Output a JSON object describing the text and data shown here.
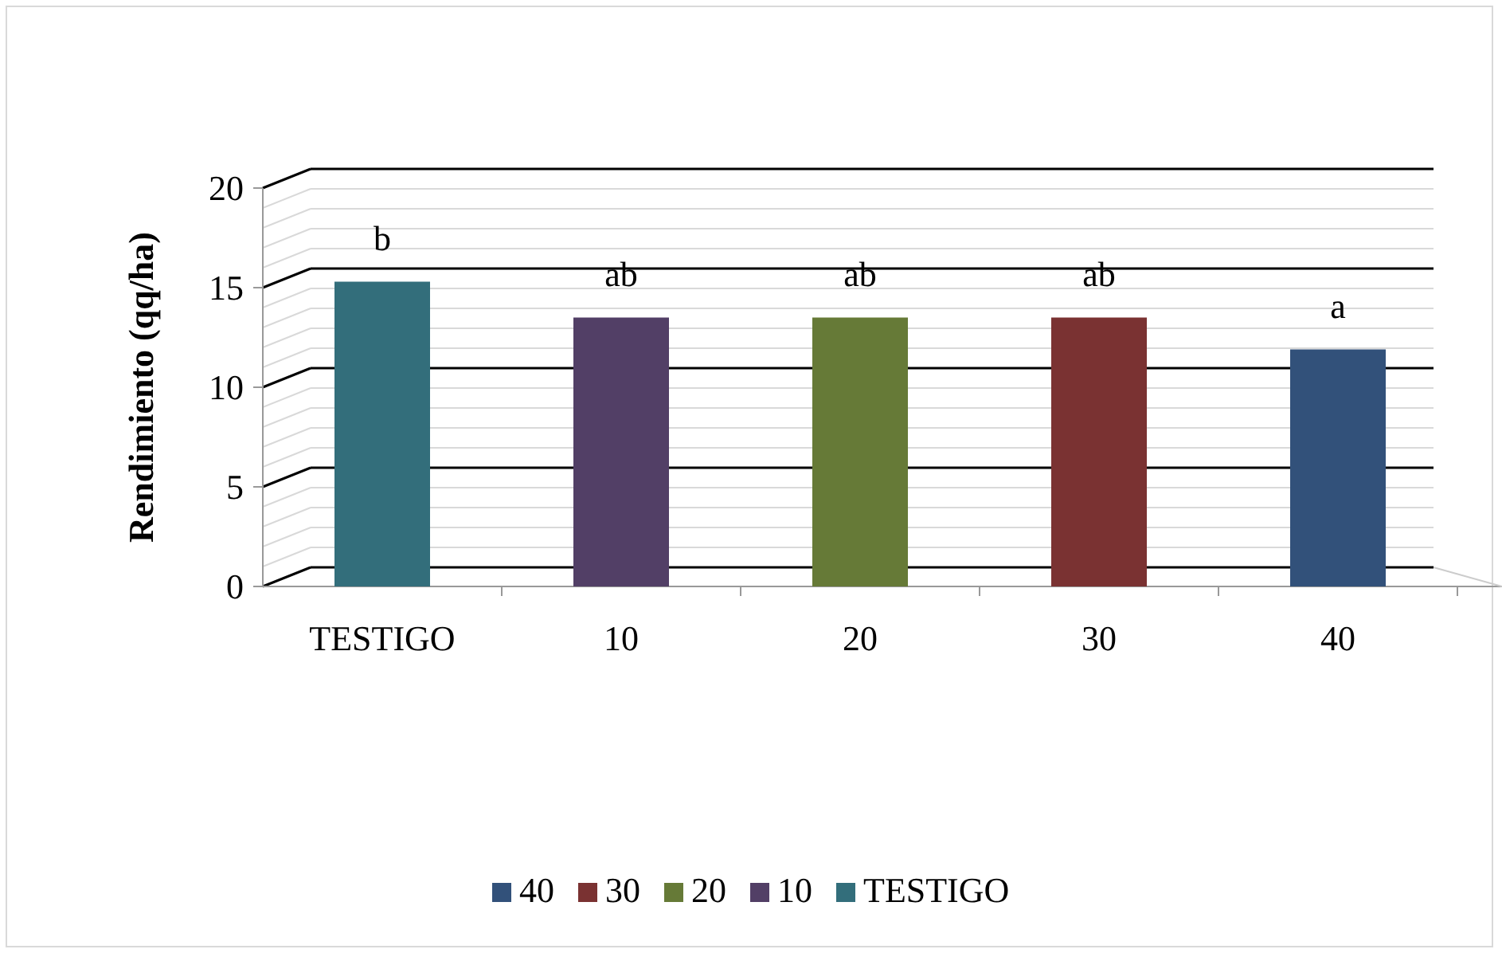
{
  "chart_data": {
    "type": "bar",
    "ylabel": "Rendimiento (qq/ha)",
    "categories": [
      "TESTIGO",
      "10",
      "20",
      "30",
      "40"
    ],
    "series": [
      {
        "name": "40",
        "color": "#32517a",
        "values": [
          null,
          null,
          null,
          null,
          11.9
        ]
      },
      {
        "name": "30",
        "color": "#7a3232",
        "values": [
          null,
          null,
          null,
          13.5,
          null
        ]
      },
      {
        "name": "20",
        "color": "#667a37",
        "values": [
          null,
          null,
          13.5,
          null,
          null
        ]
      },
      {
        "name": "10",
        "color": "#523f66",
        "values": [
          null,
          13.5,
          null,
          null,
          null
        ]
      },
      {
        "name": "TESTIGO",
        "color": "#336e7b",
        "values": [
          15.3,
          null,
          null,
          null,
          null
        ]
      }
    ],
    "ylim": [
      0,
      20
    ],
    "yticks": [
      0,
      {
        "value": 1,
        "label": null
      },
      {
        "value": 2,
        "label": null
      },
      {
        "value": 3,
        "label": null
      },
      {
        "value": 4,
        "label": null
      },
      5,
      {
        "value": 6,
        "label": null
      },
      {
        "value": 7,
        "label": null
      },
      {
        "value": 8,
        "label": null
      },
      {
        "value": 9,
        "label": null
      },
      10,
      {
        "value": 11,
        "label": null
      },
      {
        "value": 12,
        "label": null
      },
      {
        "value": 13,
        "label": null
      },
      {
        "value": 14,
        "label": null
      },
      15,
      {
        "value": 16,
        "label": null
      },
      {
        "value": 17,
        "label": null
      },
      {
        "value": 18,
        "label": null
      },
      {
        "value": 19,
        "label": null
      },
      20
    ],
    "grid": true,
    "legend": "bottom",
    "annotations": [
      {
        "text": "b",
        "x": "TESTIGO",
        "y": 15.3
      },
      {
        "text": "ab",
        "x": "10",
        "y": 13.5
      },
      {
        "text": "ab",
        "x": "20",
        "y": 13.5
      },
      {
        "text": "ab",
        "x": "30",
        "y": 13.5
      },
      {
        "text": "a",
        "x": "40",
        "y": 11.9
      }
    ]
  }
}
